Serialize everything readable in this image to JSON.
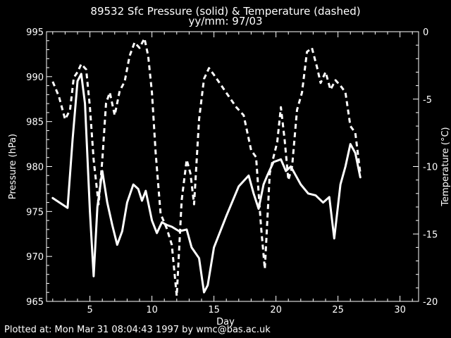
{
  "page": {
    "footer": "Plotted at: Mon Mar 31 08:04:43 1997 by wmc@bas.ac.uk"
  },
  "chart_data": {
    "type": "line",
    "title": "89532 Sfc Pressure (solid) & Temperature (dashed)",
    "subtitle": "yy/mm: 97/03",
    "xlabel": "Day",
    "ylabel_left": "Pressure (hPa)",
    "ylabel_right": "Temperature (°C)",
    "xlim": [
      1.5,
      31.5
    ],
    "x_ticks": [
      5,
      10,
      15,
      20,
      25,
      30
    ],
    "ylim_left": [
      965,
      995
    ],
    "y_ticks_left": [
      965,
      970,
      975,
      980,
      985,
      990,
      995
    ],
    "ylim_right": [
      -20,
      0
    ],
    "y_ticks_right": [
      -20,
      -15,
      -10,
      -5,
      0
    ],
    "grid": false,
    "colors": {
      "background": "#000000",
      "foreground": "#ffffff"
    },
    "series": [
      {
        "name": "Pressure",
        "axis": "left",
        "style": "solid",
        "x": [
          2.0,
          3.2,
          3.6,
          4.0,
          4.3,
          4.6,
          5.0,
          5.3,
          5.6,
          6.0,
          6.4,
          6.8,
          7.2,
          7.6,
          8.0,
          8.5,
          8.9,
          9.2,
          9.5,
          10.0,
          10.4,
          10.8,
          11.2,
          11.6,
          12.2,
          12.8,
          13.2,
          13.8,
          14.2,
          14.5,
          15.0,
          16.0,
          17.0,
          17.8,
          18.2,
          18.6,
          19.0,
          19.3,
          19.8,
          20.4,
          20.8,
          21.2,
          21.6,
          22.0,
          22.6,
          23.2,
          23.8,
          24.3,
          24.7,
          25.2,
          25.6,
          26.0,
          26.4,
          26.8
        ],
        "values": [
          976.5,
          975.4,
          983.0,
          989.5,
          990.3,
          987.0,
          975.0,
          967.8,
          975.5,
          979.5,
          976.0,
          973.5,
          971.3,
          972.8,
          976.0,
          978.0,
          977.5,
          976.2,
          977.3,
          974.0,
          972.6,
          973.8,
          973.5,
          973.3,
          972.8,
          973.0,
          971.0,
          969.8,
          966.0,
          966.8,
          971.0,
          974.5,
          977.8,
          979.0,
          977.0,
          975.3,
          978.0,
          979.0,
          980.5,
          980.8,
          979.5,
          980.0,
          979.0,
          978.0,
          977.0,
          976.8,
          976.0,
          976.6,
          972.0,
          978.0,
          980.0,
          982.5,
          981.5,
          978.8
        ]
      },
      {
        "name": "Temperature",
        "axis": "right",
        "style": "dashed",
        "x": [
          2.0,
          2.5,
          3.0,
          3.4,
          3.7,
          4.0,
          4.3,
          4.7,
          5.0,
          5.3,
          5.7,
          6.0,
          6.3,
          6.6,
          7.0,
          7.4,
          7.8,
          8.2,
          8.6,
          9.0,
          9.4,
          9.7,
          10.0,
          10.3,
          10.7,
          11.2,
          11.6,
          12.0,
          12.4,
          12.8,
          13.1,
          13.4,
          13.8,
          14.2,
          14.6,
          15.0,
          15.6,
          16.2,
          16.8,
          17.4,
          18.0,
          18.4,
          18.8,
          19.1,
          19.5,
          19.8,
          20.1,
          20.4,
          20.7,
          21.0,
          21.3,
          21.7,
          22.1,
          22.5,
          22.9,
          23.3,
          23.6,
          24.0,
          24.4,
          24.8,
          25.2,
          25.6,
          26.0,
          26.4,
          26.8
        ],
        "values": [
          -3.7,
          -4.8,
          -6.5,
          -5.8,
          -3.4,
          -3.0,
          -2.4,
          -2.8,
          -5.6,
          -9.5,
          -12.8,
          -9.5,
          -5.3,
          -4.5,
          -6.2,
          -4.4,
          -3.7,
          -1.8,
          -0.8,
          -1.2,
          -0.5,
          -1.8,
          -4.5,
          -9.0,
          -13.5,
          -14.6,
          -15.8,
          -19.6,
          -12.5,
          -9.5,
          -10.5,
          -12.8,
          -6.5,
          -3.5,
          -2.7,
          -3.2,
          -4.0,
          -4.8,
          -5.6,
          -6.2,
          -8.8,
          -9.3,
          -14.5,
          -17.6,
          -10.5,
          -9.3,
          -8.2,
          -5.6,
          -8.0,
          -11.0,
          -10.0,
          -5.8,
          -4.5,
          -1.5,
          -1.2,
          -2.6,
          -3.8,
          -3.0,
          -4.3,
          -3.6,
          -4.0,
          -4.5,
          -7.0,
          -7.5,
          -10.5
        ]
      }
    ]
  }
}
